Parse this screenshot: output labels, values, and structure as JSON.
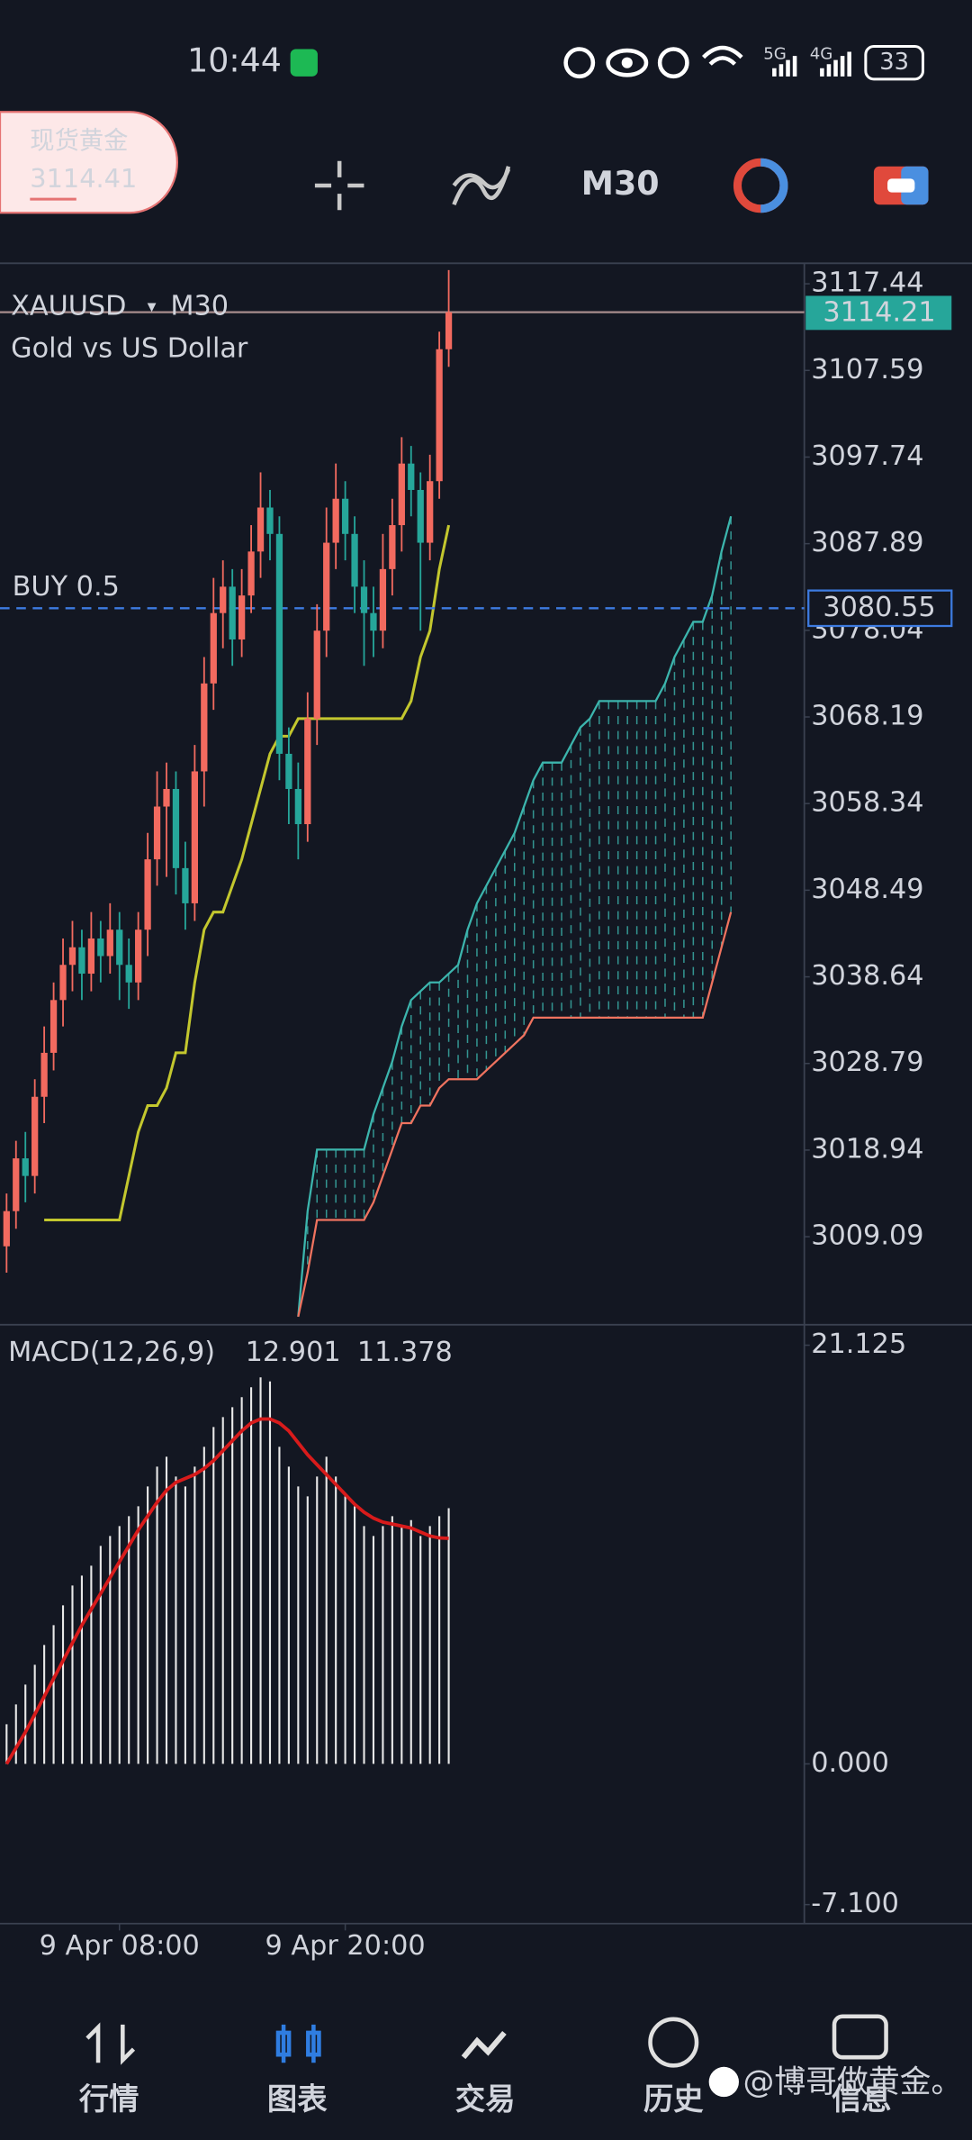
{
  "status_bar": {
    "time": "10:44",
    "network_1": "5G",
    "network_2": "4G",
    "battery": "33"
  },
  "toolbar": {
    "symbol_name": "现货黄金",
    "price": 3114.41,
    "timeframe": "M30"
  },
  "chart_data": {
    "type": "candlestick",
    "symbol": "XAUUSD",
    "timeframe": "M30",
    "description": "Gold vs US Dollar",
    "colors": {
      "up": "#f26a5f",
      "down": "#26a69a"
    },
    "open": [
      3008,
      3012,
      3018,
      3016,
      3025,
      3030,
      3036,
      3040,
      3042,
      3039,
      3043,
      3041,
      3044,
      3040,
      3038,
      3044,
      3052,
      3058,
      3060,
      3051,
      3047,
      3062,
      3072,
      3080,
      3083,
      3077,
      3082,
      3087,
      3092,
      3089,
      3064,
      3060,
      3056,
      3068,
      3078,
      3088,
      3093,
      3089,
      3083,
      3080,
      3078,
      3085,
      3090,
      3097,
      3094,
      3088,
      3095,
      3110
    ],
    "high": [
      3014,
      3020,
      3021,
      3027,
      3033,
      3038,
      3043,
      3045,
      3044,
      3046,
      3045,
      3047,
      3046,
      3043,
      3046,
      3055,
      3062,
      3063,
      3062,
      3054,
      3065,
      3075,
      3084,
      3086,
      3085,
      3085,
      3090,
      3096,
      3094,
      3091,
      3067,
      3063,
      3071,
      3081,
      3092,
      3097,
      3095,
      3091,
      3086,
      3083,
      3089,
      3093,
      3100,
      3099,
      3096,
      3098,
      3112,
      3119
    ],
    "low": [
      3005,
      3010,
      3013,
      3014,
      3022,
      3028,
      3033,
      3037,
      3036,
      3037,
      3038,
      3039,
      3036,
      3035,
      3036,
      3041,
      3049,
      3050,
      3048,
      3044,
      3045,
      3058,
      3069,
      3076,
      3074,
      3075,
      3080,
      3084,
      3086,
      3061,
      3056,
      3052,
      3054,
      3065,
      3075,
      3085,
      3086,
      3080,
      3074,
      3075,
      3076,
      3082,
      3087,
      3091,
      3078,
      3086,
      3093,
      3108
    ],
    "close": [
      3012,
      3018,
      3016,
      3025,
      3030,
      3036,
      3040,
      3042,
      3039,
      3043,
      3041,
      3044,
      3040,
      3038,
      3044,
      3052,
      3058,
      3060,
      3051,
      3047,
      3062,
      3072,
      3080,
      3083,
      3077,
      3082,
      3087,
      3092,
      3089,
      3064,
      3060,
      3056,
      3068,
      3078,
      3088,
      3093,
      3089,
      3083,
      3080,
      3078,
      3085,
      3090,
      3097,
      3094,
      3088,
      3095,
      3110,
      3114.21
    ],
    "kijun": {
      "color": "#c3c72e",
      "values": [
        null,
        null,
        null,
        null,
        3011,
        3011,
        3011,
        3011,
        3011,
        3011,
        3011,
        3011,
        3011,
        3016,
        3021,
        3024,
        3024,
        3026,
        3030,
        3030,
        3038,
        3044,
        3046,
        3046,
        3049,
        3052,
        3056,
        3060,
        3064,
        3066,
        3066,
        3068,
        3068,
        3068,
        3068,
        3068,
        3068,
        3068,
        3068,
        3068,
        3068,
        3068,
        3068,
        3070,
        3075,
        3078,
        3085,
        3090
      ]
    },
    "cloud": {
      "span_a": {
        "color": "#3cb5ad",
        "values": [
          null,
          null,
          null,
          null,
          null,
          null,
          null,
          null,
          null,
          null,
          null,
          null,
          null,
          null,
          null,
          null,
          null,
          null,
          null,
          null,
          null,
          null,
          null,
          null,
          null,
          null,
          null,
          null,
          null,
          null,
          null,
          3000,
          3012,
          3019,
          3019,
          3019,
          3019,
          3019,
          3019,
          3023,
          3026,
          3029,
          3033,
          3036,
          3037,
          3038,
          3038,
          3039,
          3040,
          3044,
          3047,
          3049,
          3051,
          3053,
          3055,
          3058,
          3061,
          3063,
          3063,
          3063,
          3065,
          3067,
          3068,
          3070,
          3070,
          3070,
          3070,
          3070,
          3070,
          3070,
          3072,
          3075,
          3077,
          3079,
          3079,
          3082,
          3087,
          3091
        ]
      },
      "span_b": {
        "color": "#f0735f",
        "values": [
          null,
          null,
          null,
          null,
          null,
          null,
          null,
          null,
          null,
          null,
          null,
          null,
          null,
          null,
          null,
          null,
          null,
          null,
          null,
          null,
          null,
          null,
          null,
          null,
          null,
          null,
          null,
          null,
          null,
          null,
          null,
          3000,
          3005,
          3011,
          3011,
          3011,
          3011,
          3011,
          3011,
          3013,
          3016,
          3019,
          3022,
          3022,
          3024,
          3024,
          3026,
          3027,
          3027,
          3027,
          3027,
          3028,
          3029,
          3030,
          3031,
          3032,
          3034,
          3034,
          3034,
          3034,
          3034,
          3034,
          3034,
          3034,
          3034,
          3034,
          3034,
          3034,
          3034,
          3034,
          3034,
          3034,
          3034,
          3034,
          3034,
          3038,
          3042,
          3046
        ]
      }
    },
    "last_price": 3114.21,
    "order": {
      "label": "BUY 0.5",
      "price": 3080.55
    },
    "xlim": [
      -0.7,
      84.8
    ],
    "ylim": [
      2999.24,
      3119.77
    ],
    "yticks": [
      3117.44,
      3107.59,
      3097.74,
      3087.89,
      3078.04,
      3068.19,
      3058.34,
      3048.49,
      3038.64,
      3028.79,
      3018.94,
      3009.09
    ],
    "xticks": [
      {
        "value": 12,
        "label": "9 Apr 08:00"
      },
      {
        "value": 36,
        "label": "9 Apr 20:00"
      }
    ],
    "macd": {
      "label": "MACD(12,26,9)",
      "printed_values": [
        12.901,
        11.378
      ],
      "histogram": {
        "color": "#e8e8e8",
        "values": [
          2,
          3,
          4,
          5,
          6,
          7,
          8,
          9,
          9.5,
          10,
          11,
          11.5,
          12,
          12.5,
          13,
          14,
          15,
          15.5,
          14.5,
          14,
          15,
          16,
          17,
          17.5,
          18,
          18.5,
          19,
          19.5,
          19.3,
          16,
          15,
          14,
          13.5,
          14.5,
          15.5,
          14.5,
          13.5,
          13,
          12,
          11.5,
          12,
          12.5,
          12,
          12.3,
          11.5,
          12,
          12.5,
          12.901
        ]
      },
      "signal": {
        "color": "#d81b1b",
        "values": [
          0,
          0.8,
          1.6,
          2.5,
          3.4,
          4.3,
          5.2,
          6.1,
          7,
          7.8,
          8.6,
          9.4,
          10.2,
          11,
          11.8,
          12.5,
          13.2,
          13.8,
          14.2,
          14.4,
          14.6,
          14.9,
          15.3,
          15.8,
          16.3,
          16.8,
          17.2,
          17.4,
          17.4,
          17.2,
          16.8,
          16.2,
          15.6,
          15.1,
          14.6,
          14.1,
          13.6,
          13.1,
          12.7,
          12.4,
          12.2,
          12.1,
          12,
          11.9,
          11.7,
          11.5,
          11.4,
          11.378
        ]
      },
      "ylim": [
        -8.06,
        22.09
      ],
      "yticks": [
        21.125,
        {
          "value": 0,
          "label": "0.000"
        },
        {
          "value": -7.1,
          "label": "-7.100"
        }
      ]
    }
  },
  "nav": {
    "items": [
      "行情",
      "图表",
      "交易",
      "历史",
      "信息"
    ],
    "active": 1
  },
  "watermark": "@博哥做黄金。"
}
